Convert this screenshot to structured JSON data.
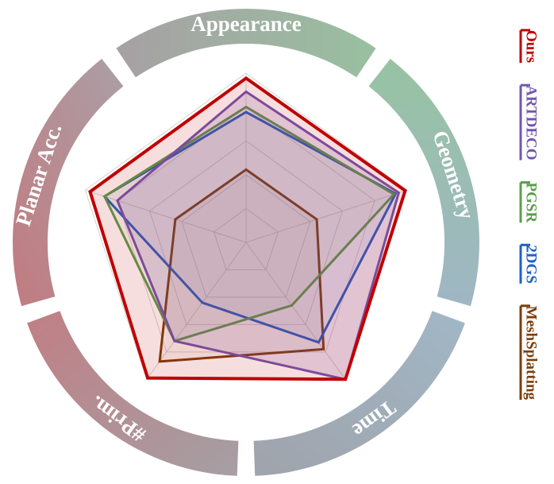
{
  "chart_data": {
    "type": "radar",
    "categories": [
      "Appearance",
      "Geometry",
      "Time",
      "#Prim.",
      "Planar Acc."
    ],
    "rlim": [
      0,
      1
    ],
    "rticks": [
      0.2,
      0.4,
      0.6,
      0.8,
      1
    ],
    "grid": true,
    "legend": "right",
    "series": [
      {
        "name": "Ours",
        "color": "#c00000",
        "values": [
          0.97,
          0.99,
          1.0,
          0.99,
          0.97
        ]
      },
      {
        "name": "ARTDECO",
        "color": "#7356b0",
        "values": [
          0.89,
          0.95,
          1.0,
          0.72,
          0.8
        ]
      },
      {
        "name": "PGSR",
        "color": "#5a9e4b",
        "values": [
          0.8,
          0.92,
          0.46,
          0.72,
          0.88
        ]
      },
      {
        "name": "2DGS",
        "color": "#1f5fc8",
        "values": [
          0.77,
          0.93,
          0.73,
          0.44,
          0.88
        ]
      },
      {
        "name": "MeshSplatting",
        "color": "#7a3e0a",
        "values": [
          0.43,
          0.44,
          0.78,
          0.87,
          0.44
        ]
      }
    ]
  }
}
